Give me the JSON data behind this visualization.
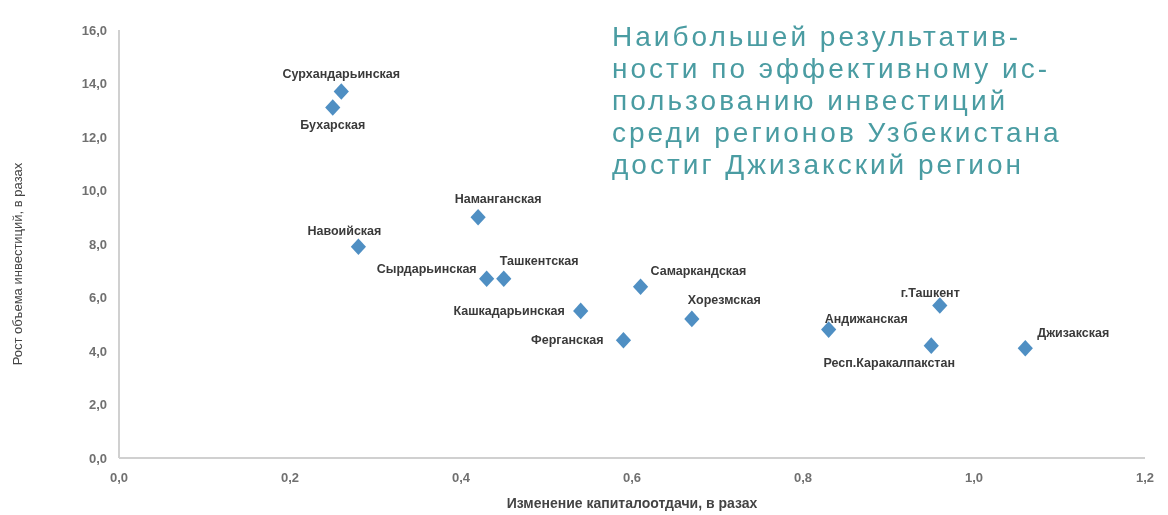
{
  "chart_data": {
    "type": "scatter",
    "title": "Наибольшей результатив-\nности по эффективному ис-\nпользованию инвестиций\nсреди регионов Узбекистана\nдостиг Джизакский регион",
    "xlabel": "Изменение капиталоотдачи, в разах",
    "ylabel": "Рост объема инвестиций, в разах",
    "marker": "diamond",
    "grid": false,
    "legend": false,
    "xlim": [
      0,
      1.2
    ],
    "xticks": [
      {
        "value": 0,
        "label": "0,0"
      },
      {
        "value": 0.2,
        "label": "0,2"
      },
      {
        "value": 0.4,
        "label": "0,4"
      },
      {
        "value": 0.6,
        "label": "0,6"
      },
      {
        "value": 0.8,
        "label": "0,8"
      },
      {
        "value": 1,
        "label": "1,0"
      },
      {
        "value": 1.2,
        "label": "1,2"
      }
    ],
    "ylim": [
      0,
      16
    ],
    "yticks": [
      {
        "value": 0,
        "label": "0,0"
      },
      {
        "value": 2,
        "label": "2,0"
      },
      {
        "value": 4,
        "label": "4,0"
      },
      {
        "value": 6,
        "label": "6,0"
      },
      {
        "value": 8,
        "label": "8,0"
      },
      {
        "value": 10,
        "label": "10,0"
      },
      {
        "value": 12,
        "label": "12,0"
      },
      {
        "value": 14,
        "label": "14,0"
      },
      {
        "value": 16,
        "label": "16,0"
      }
    ],
    "series": [
      {
        "name": "Сурхандарьинская",
        "color": "#4f8fc3",
        "x": [
          0.26
        ],
        "values": [
          13.7
        ]
      },
      {
        "name": "Бухарская",
        "color": "#4f8fc3",
        "x": [
          0.25
        ],
        "values": [
          13.1
        ]
      },
      {
        "name": "Наманганская",
        "color": "#4f8fc3",
        "x": [
          0.42
        ],
        "values": [
          9.0
        ]
      },
      {
        "name": "Навоийская",
        "color": "#4f8fc3",
        "x": [
          0.28
        ],
        "values": [
          7.9
        ]
      },
      {
        "name": "Сырдарьинская",
        "color": "#4f8fc3",
        "x": [
          0.43
        ],
        "values": [
          6.7
        ]
      },
      {
        "name": "Ташкентская",
        "color": "#4f8fc3",
        "x": [
          0.45
        ],
        "values": [
          6.7
        ]
      },
      {
        "name": "Кашкадарьинская",
        "color": "#4f8fc3",
        "x": [
          0.54
        ],
        "values": [
          5.5
        ]
      },
      {
        "name": "Ферганская",
        "color": "#4f8fc3",
        "x": [
          0.59
        ],
        "values": [
          4.4
        ]
      },
      {
        "name": "Самаркандская",
        "color": "#4f8fc3",
        "x": [
          0.61
        ],
        "values": [
          6.4
        ]
      },
      {
        "name": "Хорезмская",
        "color": "#4f8fc3",
        "x": [
          0.67
        ],
        "values": [
          5.2
        ]
      },
      {
        "name": "Андижанская",
        "color": "#4f8fc3",
        "x": [
          0.83
        ],
        "values": [
          4.8
        ]
      },
      {
        "name": "г.Ташкент",
        "color": "#4f8fc3",
        "x": [
          0.96
        ],
        "values": [
          5.7
        ]
      },
      {
        "name": "Респ.Каракалпакстан",
        "color": "#4f8fc3",
        "x": [
          0.95
        ],
        "values": [
          4.2
        ]
      },
      {
        "name": "Джизакская",
        "color": "#4f8fc3",
        "x": [
          1.06
        ],
        "values": [
          4.1
        ]
      }
    ]
  }
}
